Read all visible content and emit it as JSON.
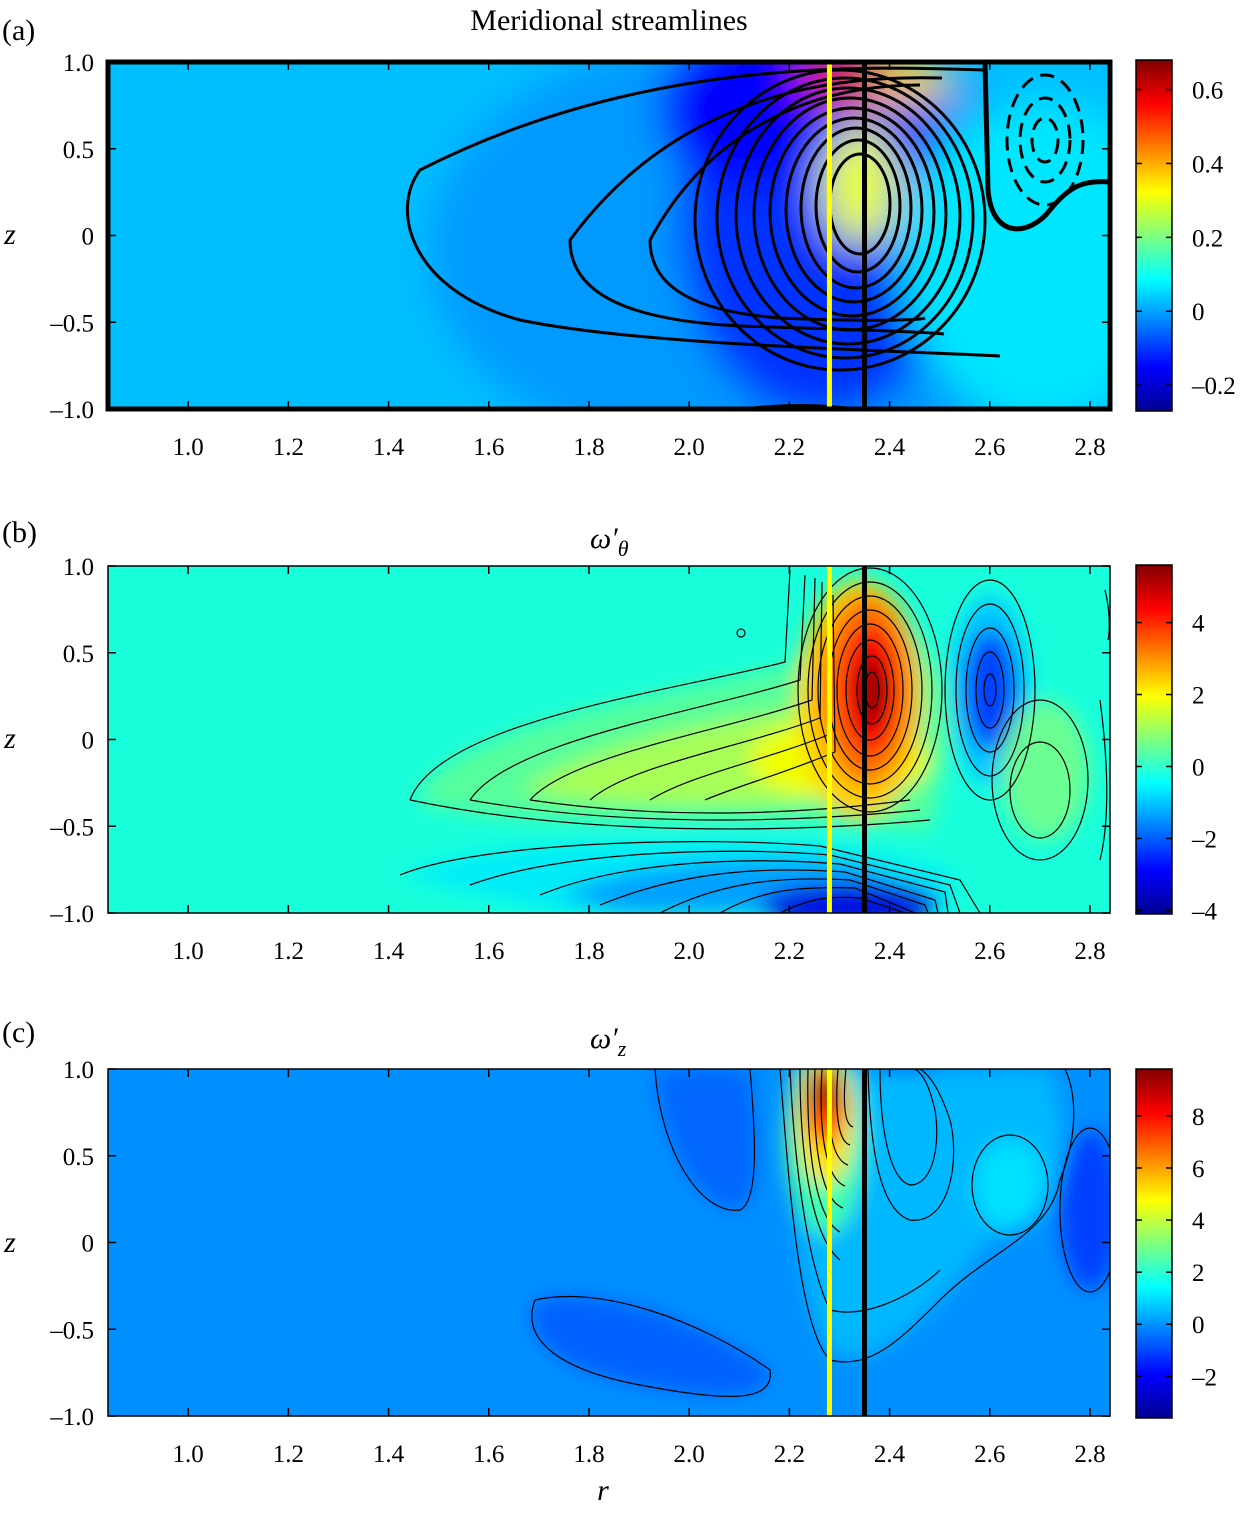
{
  "chart_data": [
    {
      "id": "a",
      "type": "heatmap",
      "panel_label": "(a)",
      "title": "Meridional streamlines",
      "xlabel": "",
      "ylabel": "z",
      "xlim": [
        0.84,
        2.84
      ],
      "ylim": [
        -1.0,
        1.0
      ],
      "x_ticks": [
        "1.0",
        "1.2",
        "1.4",
        "1.6",
        "1.8",
        "2.0",
        "2.2",
        "2.4",
        "2.6",
        "2.8"
      ],
      "y_ticks": [
        "1.0",
        "0.5",
        "0",
        "–0.5",
        "–1.0"
      ],
      "colorbar": {
        "range": [
          -0.27,
          0.68
        ],
        "ticks": [
          "0.6",
          "0.4",
          "0.2",
          "0",
          "–0.2"
        ],
        "tick_values": [
          0.6,
          0.4,
          0.2,
          0,
          -0.2
        ]
      },
      "vertical_lines": [
        {
          "x": 2.28,
          "color": "#ffff00"
        },
        {
          "x": 2.35,
          "color": "#000000"
        }
      ]
    },
    {
      "id": "b",
      "type": "heatmap",
      "panel_label": "(b)",
      "title": "ω′θ",
      "title_main": "ω′",
      "title_sub": "θ",
      "xlabel": "",
      "ylabel": "z",
      "xlim": [
        0.84,
        2.84
      ],
      "ylim": [
        -1.0,
        1.0
      ],
      "x_ticks": [
        "1.0",
        "1.2",
        "1.4",
        "1.6",
        "1.8",
        "2.0",
        "2.2",
        "2.4",
        "2.6",
        "2.8"
      ],
      "y_ticks": [
        "1.0",
        "0.5",
        "0",
        "–0.5",
        "–1.0"
      ],
      "colorbar": {
        "range": [
          -4.1,
          5.6
        ],
        "ticks": [
          "4",
          "2",
          "0",
          "–2",
          "–4"
        ],
        "tick_values": [
          4,
          2,
          0,
          -2,
          -4
        ]
      },
      "vertical_lines": [
        {
          "x": 2.28,
          "color": "#ffff00"
        },
        {
          "x": 2.35,
          "color": "#000000"
        }
      ]
    },
    {
      "id": "c",
      "type": "heatmap",
      "panel_label": "(c)",
      "title": "ω′z",
      "title_main": "ω′",
      "title_sub": "z",
      "xlabel": "r",
      "ylabel": "z",
      "xlim": [
        0.84,
        2.84
      ],
      "ylim": [
        -1.0,
        1.0
      ],
      "x_ticks": [
        "1.0",
        "1.2",
        "1.4",
        "1.6",
        "1.8",
        "2.0",
        "2.2",
        "2.4",
        "2.6",
        "2.8"
      ],
      "y_ticks": [
        "1.0",
        "0.5",
        "0",
        "–0.5",
        "–1.0"
      ],
      "colorbar": {
        "range": [
          -3.6,
          9.8
        ],
        "ticks": [
          "8",
          "6",
          "4",
          "2",
          "0",
          "–2"
        ],
        "tick_values": [
          8,
          6,
          4,
          2,
          0,
          -2
        ]
      },
      "vertical_lines": [
        {
          "x": 2.28,
          "color": "#ffff00"
        },
        {
          "x": 2.35,
          "color": "#000000"
        }
      ]
    }
  ]
}
